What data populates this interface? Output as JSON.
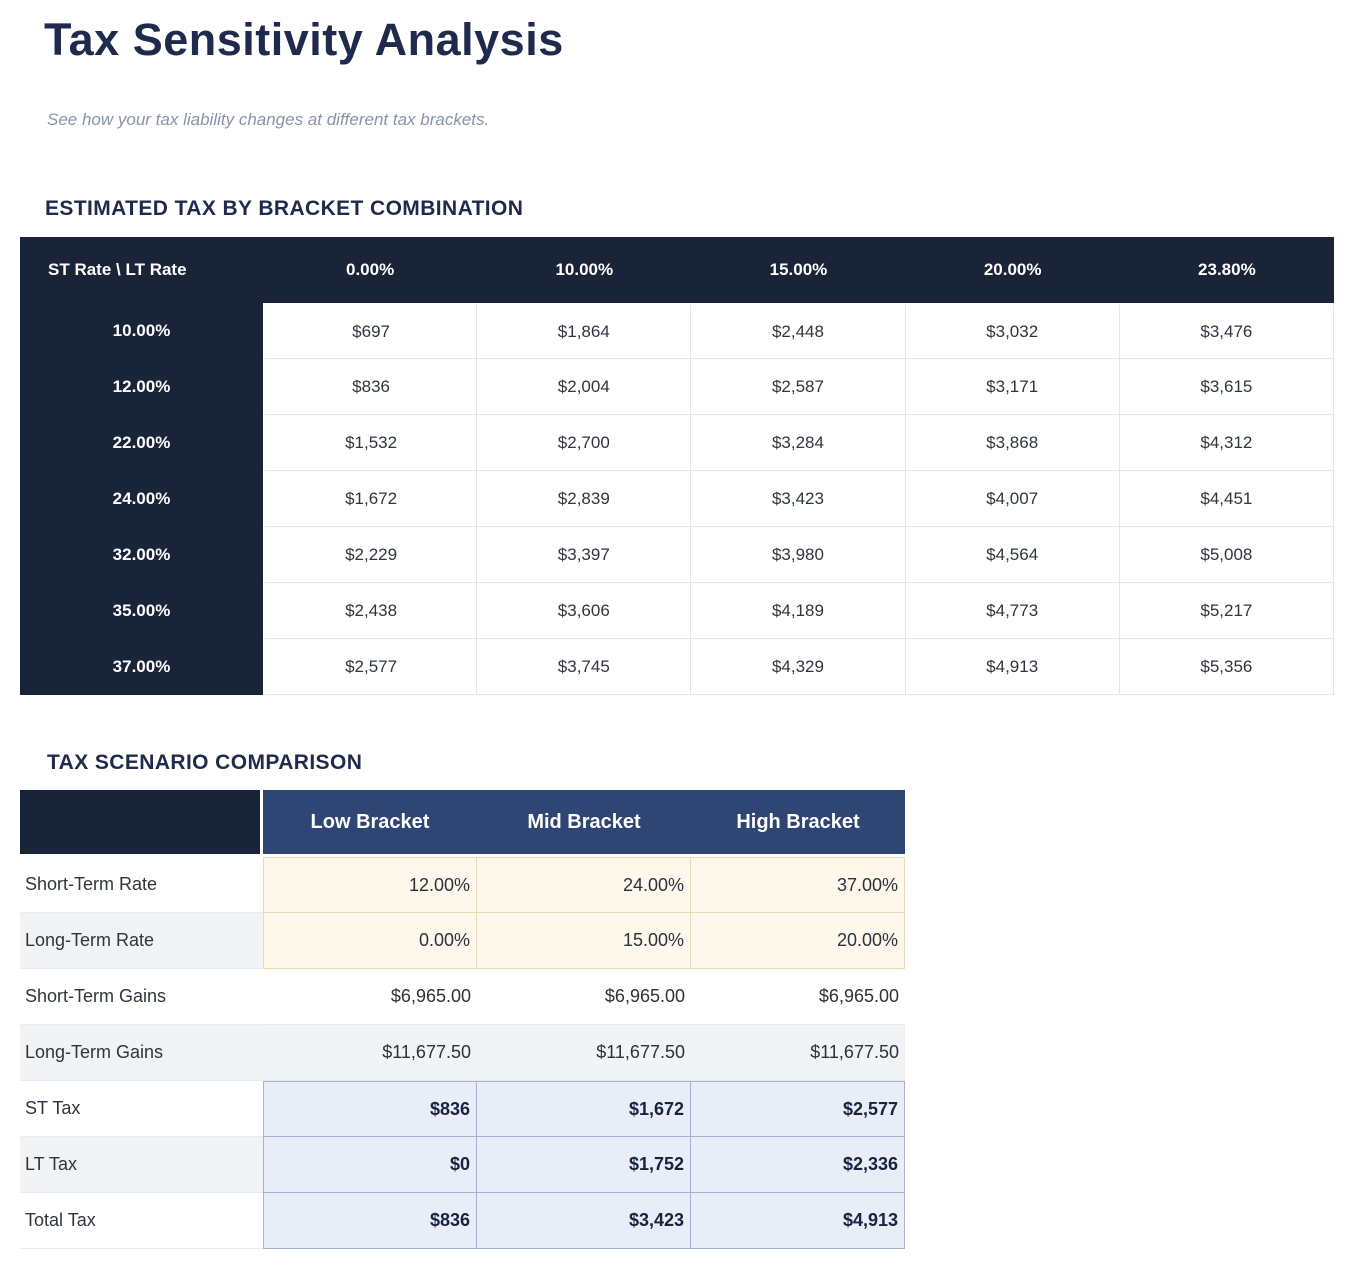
{
  "page": {
    "title": "Tax Sensitivity Analysis",
    "subtitle": "See how your tax liability changes at different tax brackets."
  },
  "bracket_table": {
    "heading": "ESTIMATED TAX BY BRACKET COMBINATION",
    "corner_label": "ST Rate \\ LT Rate",
    "col_headers": [
      "0.00%",
      "10.00%",
      "15.00%",
      "20.00%",
      "23.80%"
    ],
    "rows": [
      {
        "rate": "10.00%",
        "values": [
          "$697",
          "$1,864",
          "$2,448",
          "$3,032",
          "$3,476"
        ]
      },
      {
        "rate": "12.00%",
        "values": [
          "$836",
          "$2,004",
          "$2,587",
          "$3,171",
          "$3,615"
        ]
      },
      {
        "rate": "22.00%",
        "values": [
          "$1,532",
          "$2,700",
          "$3,284",
          "$3,868",
          "$4,312"
        ]
      },
      {
        "rate": "24.00%",
        "values": [
          "$1,672",
          "$2,839",
          "$3,423",
          "$4,007",
          "$4,451"
        ]
      },
      {
        "rate": "32.00%",
        "values": [
          "$2,229",
          "$3,397",
          "$3,980",
          "$4,564",
          "$5,008"
        ]
      },
      {
        "rate": "35.00%",
        "values": [
          "$2,438",
          "$3,606",
          "$4,189",
          "$4,773",
          "$5,217"
        ]
      },
      {
        "rate": "37.00%",
        "values": [
          "$2,577",
          "$3,745",
          "$4,329",
          "$4,913",
          "$5,356"
        ]
      }
    ]
  },
  "scenario_table": {
    "heading": "TAX SCENARIO COMPARISON",
    "col_headers": [
      "Low Bracket",
      "Mid Bracket",
      "High Bracket"
    ],
    "rows": [
      {
        "label": "Short-Term Rate",
        "type": "input",
        "values": [
          "12.00%",
          "24.00%",
          "37.00%"
        ]
      },
      {
        "label": "Long-Term Rate",
        "type": "input",
        "values": [
          "0.00%",
          "15.00%",
          "20.00%"
        ]
      },
      {
        "label": "Short-Term Gains",
        "type": "plain",
        "values": [
          "$6,965.00",
          "$6,965.00",
          "$6,965.00"
        ]
      },
      {
        "label": "Long-Term Gains",
        "type": "plain",
        "values": [
          "$11,677.50",
          "$11,677.50",
          "$11,677.50"
        ]
      },
      {
        "label": "ST Tax",
        "type": "result",
        "values": [
          "$836",
          "$1,672",
          "$2,577"
        ]
      },
      {
        "label": "LT Tax",
        "type": "result",
        "values": [
          "$0",
          "$1,752",
          "$2,336"
        ]
      },
      {
        "label": "Total Tax",
        "type": "result",
        "values": [
          "$836",
          "$3,423",
          "$4,913"
        ]
      }
    ]
  },
  "colors": {
    "header_navy": "#1a2439",
    "header_blue": "#2f4573",
    "heading_text": "#1f2b4d",
    "subtitle_gray": "#8a93a6",
    "cell_border": "#e3e6ea",
    "stripe_gray": "#f1f3f5",
    "input_bg": "#fdf8eb",
    "input_border": "#e5dbb7",
    "result_bg": "#e9edf8",
    "result_border": "#a6b1cb",
    "result_text": "#17233f"
  }
}
